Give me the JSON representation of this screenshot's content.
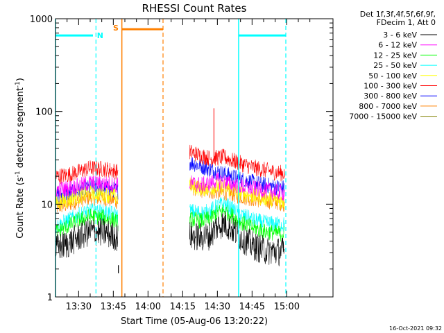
{
  "chart_data": {
    "type": "line",
    "title": "RHESSI Count Rates",
    "xlabel": "Start Time (05-Aug-06 13:20:22)",
    "ylabel_prefix": "Count Rate (s",
    "ylabel_sup1": "-1",
    "ylabel_middle": " detector segment",
    "ylabel_sup2": "-1",
    "ylabel_suffix": ")",
    "y_scale": "log",
    "ylim": [
      1,
      1000
    ],
    "y_ticks": [
      {
        "value": 1,
        "label": "1"
      },
      {
        "value": 10,
        "label": "10"
      },
      {
        "value": 100,
        "label": "100"
      },
      {
        "value": 1000,
        "label": "1000"
      }
    ],
    "xlim_minutes_after_1320": [
      0,
      120
    ],
    "x_ticks": [
      {
        "minute": 10,
        "label": "13:30"
      },
      {
        "minute": 25,
        "label": "13:45"
      },
      {
        "minute": 40,
        "label": "14:00"
      },
      {
        "minute": 55,
        "label": "14:15"
      },
      {
        "minute": 70,
        "label": "14:30"
      },
      {
        "minute": 85,
        "label": "14:45"
      },
      {
        "minute": 100,
        "label": "15:00"
      }
    ],
    "legend_header": [
      "Det 1f,3f,4f,5f,6f,9f,",
      "FDecim 1, Att 0"
    ],
    "legend_placement": "right",
    "series": [
      {
        "name": "3 - 6 keV",
        "color": "#000000",
        "segments": [
          {
            "x": [
              0,
              5,
              10,
              15,
              20,
              25,
              27
            ],
            "y": [
              3.3,
              3.7,
              4.4,
              5.1,
              5.0,
              4.6,
              4.3
            ]
          },
          {
            "x": [
              58,
              63,
              67,
              70,
              73,
              76,
              80,
              85,
              90,
              95,
              99
            ],
            "y": [
              4.6,
              4.4,
              4.6,
              5.8,
              6.2,
              5.5,
              4.4,
              3.6,
              3.2,
              3.1,
              3.1
            ]
          }
        ]
      },
      {
        "name": "6 - 12 keV",
        "color": "#ff00ff",
        "segments": [
          {
            "x": [
              0,
              5,
              10,
              15,
              20,
              25,
              27
            ],
            "y": [
              14.3,
              14.8,
              15.7,
              17.0,
              16.7,
              16.4,
              16.0
            ]
          },
          {
            "x": [
              58,
              63,
              67,
              70,
              73,
              76,
              80,
              85,
              90,
              95,
              99
            ],
            "y": [
              17.0,
              16.1,
              16.9,
              18.0,
              17.5,
              16.6,
              15.7,
              14.8,
              14.2,
              13.6,
              13.2
            ]
          }
        ]
      },
      {
        "name": "12 - 25 keV",
        "color": "#00ff00",
        "segments": [
          {
            "x": [
              0,
              5,
              10,
              15,
              20,
              25,
              27
            ],
            "y": [
              5.0,
              5.7,
              6.7,
              7.4,
              7.2,
              6.8,
              6.3
            ]
          },
          {
            "x": [
              58,
              63,
              67,
              70,
              73,
              76,
              80,
              85,
              90,
              95,
              99
            ],
            "y": [
              6.9,
              6.6,
              7.0,
              8.1,
              8.5,
              7.6,
              6.4,
              5.6,
              5.1,
              4.9,
              4.8
            ]
          }
        ]
      },
      {
        "name": "25 - 50 keV",
        "color": "#00ffff",
        "segments": [
          {
            "x": [
              0,
              5,
              10,
              15,
              20,
              25,
              27
            ],
            "y": [
              5.7,
              6.6,
              7.6,
              8.4,
              8.2,
              7.9,
              7.3
            ]
          },
          {
            "x": [
              58,
              63,
              67,
              70,
              73,
              76,
              80,
              85,
              90,
              95,
              99
            ],
            "y": [
              8.4,
              8.0,
              8.4,
              9.6,
              10.0,
              9.0,
              7.7,
              6.8,
              6.3,
              6.1,
              6.0
            ]
          }
        ]
      },
      {
        "name": "50 - 100 keV",
        "color": "#ffff00",
        "segments": [
          {
            "x": [
              0,
              5,
              10,
              15,
              20,
              25,
              27
            ],
            "y": [
              10.4,
              11.0,
              12.2,
              13.1,
              12.8,
              12.3,
              11.7
            ]
          },
          {
            "x": [
              58,
              63,
              67,
              70,
              73,
              76,
              80,
              85,
              90,
              95,
              99
            ],
            "y": [
              16.0,
              14.8,
              14.9,
              15.6,
              15.2,
              14.3,
              13.2,
              12.3,
              11.7,
              11.1,
              10.6
            ]
          }
        ]
      },
      {
        "name": "100 - 300 keV",
        "color": "#ff0000",
        "segments": [
          {
            "x": [
              0,
              5,
              10,
              15,
              20,
              25,
              27
            ],
            "y": [
              20.0,
              20.6,
              22.3,
              24.5,
              24.0,
              23.1,
              22.3
            ]
          },
          {
            "x": [
              58,
              63,
              67,
              70,
              73,
              76,
              80,
              85,
              90,
              95,
              99
            ],
            "y": [
              36.6,
              33.5,
              31.2,
              31.6,
              32.2,
              29.8,
              27.5,
              25.0,
              23.5,
              22.1,
              21.4
            ]
          }
        ]
      },
      {
        "name": "300 - 800 keV",
        "color": "#0000ff",
        "segments": [
          {
            "x": [
              0,
              5,
              10,
              15,
              20,
              25,
              27
            ],
            "y": [
              12.4,
              12.9,
              13.9,
              15.1,
              14.9,
              14.4,
              13.8
            ]
          },
          {
            "x": [
              58,
              63,
              67,
              70,
              73,
              76,
              80,
              85,
              90,
              95,
              99
            ],
            "y": [
              28.4,
              25.7,
              23.6,
              22.4,
              21.3,
              20.0,
              18.6,
              17.3,
              16.2,
              15.4,
              14.9
            ]
          }
        ]
      },
      {
        "name": "800 - 7000 keV",
        "color": "#ff8000",
        "segments": [
          {
            "x": [
              0,
              5,
              10,
              15,
              20,
              25,
              27
            ],
            "y": [
              9.3,
              9.9,
              11.0,
              11.9,
              11.6,
              11.2,
              10.6
            ]
          },
          {
            "x": [
              58,
              63,
              67,
              70,
              73,
              76,
              80,
              85,
              90,
              95,
              99
            ],
            "y": [
              15.4,
              14.3,
              13.8,
              13.5,
              13.4,
              12.9,
              12.2,
              11.5,
              11.0,
              10.6,
              10.2
            ]
          }
        ]
      },
      {
        "name": "7000 - 15000 keV",
        "color": "#808000",
        "segments": []
      }
    ],
    "spike": {
      "x": 68.5,
      "y_from": 30,
      "y_to": 108,
      "color": "#ff0000"
    },
    "dropout": {
      "x": 27.2,
      "y_from": 2.2,
      "y_to": 1.8,
      "color": "#000000"
    },
    "intervals": [
      {
        "label": "",
        "color": "#00ffff",
        "solid_x": 0,
        "dashed_x": 17.5,
        "bar_x": [
          0,
          16.2
        ],
        "bar_y": 660
      },
      {
        "label": "N",
        "color": "#00ffff",
        "label_x": 19.3,
        "label_y": 660
      },
      {
        "label": "",
        "color": "#00ffff",
        "solid_x": 79.2,
        "dashed_x": 99.6,
        "bar_x": [
          79.2,
          99.6
        ],
        "bar_y": 660
      },
      {
        "label": "S",
        "color": "#ff8000",
        "label_x": 26.1,
        "label_y": 800,
        "solid_x": 28.7,
        "dashed_x": 46.5,
        "bar_x": [
          28.7,
          46.5
        ],
        "bar_y": 770
      }
    ],
    "footer": "16-Oct-2021 09:32"
  }
}
